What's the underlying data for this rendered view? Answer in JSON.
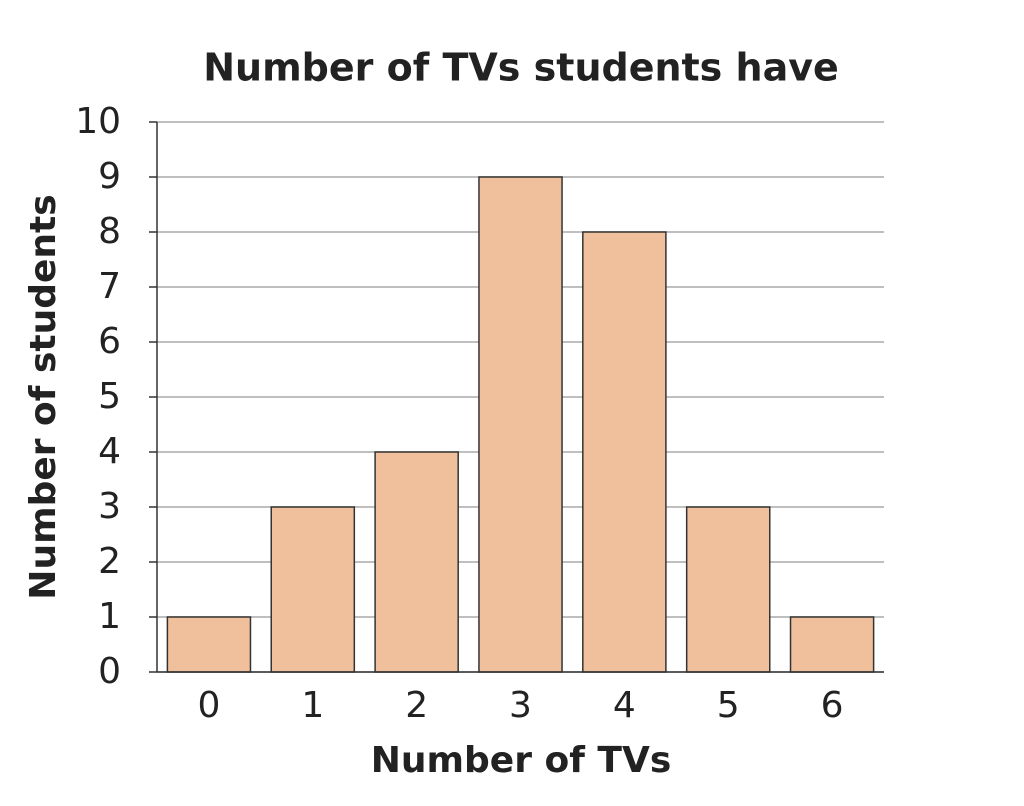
{
  "chart_data": {
    "type": "bar",
    "title": "Number of TVs students have",
    "x_label": "Number of TVs",
    "y_label": "Number of students",
    "categories": [
      "0",
      "1",
      "2",
      "3",
      "4",
      "5",
      "6"
    ],
    "values": [
      1,
      3,
      4,
      9,
      8,
      3,
      1
    ],
    "color": "#f0c09c",
    "ylim": [
      0,
      10
    ],
    "yticks": [
      0,
      1,
      2,
      3,
      4,
      5,
      6,
      7,
      8,
      9,
      10
    ],
    "grid": true
  }
}
